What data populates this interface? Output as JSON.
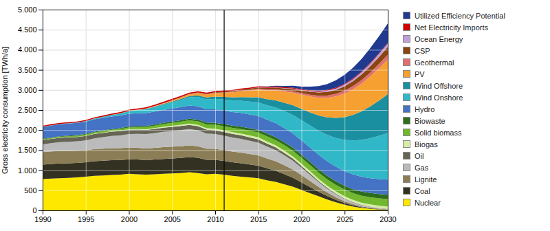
{
  "chart_data": {
    "type": "area",
    "stacked": true,
    "ylabel": "Gross electricity consumption [TWh/a]",
    "x": [
      1990,
      1991,
      1992,
      1993,
      1994,
      1995,
      1996,
      1997,
      1998,
      1999,
      2000,
      2001,
      2002,
      2003,
      2004,
      2005,
      2006,
      2007,
      2008,
      2009,
      2010,
      2011,
      2012,
      2013,
      2014,
      2015,
      2016,
      2017,
      2018,
      2019,
      2020,
      2021,
      2022,
      2023,
      2024,
      2025,
      2026,
      2027,
      2028,
      2029,
      2030
    ],
    "xlim": [
      1990,
      2030
    ],
    "xticks": [
      1990,
      1995,
      2000,
      2005,
      2010,
      2015,
      2020,
      2025,
      2030
    ],
    "ylim": [
      0,
      5000
    ],
    "yticks": [
      0,
      500,
      {
        "value": 1000,
        "label": "1.000"
      },
      {
        "value": 1500,
        "label": "1.500"
      },
      {
        "value": 2000,
        "label": "2.000"
      },
      {
        "value": 2500,
        "label": "2.500"
      },
      {
        "value": 3000,
        "label": "3.000"
      },
      {
        "value": 3500,
        "label": "3.500"
      },
      {
        "value": 4000,
        "label": "4.000"
      },
      {
        "value": 4500,
        "label": "4.500"
      },
      {
        "value": 5000,
        "label": "5.000"
      }
    ],
    "grid": true,
    "legend": "right",
    "vline": 2011,
    "series": [
      {
        "name": "Nuclear",
        "color": "#FFE800",
        "values": [
          780,
          790,
          800,
          810,
          820,
          840,
          860,
          870,
          880,
          890,
          910,
          900,
          890,
          900,
          910,
          920,
          930,
          950,
          930,
          900,
          910,
          890,
          860,
          840,
          820,
          800,
          750,
          710,
          650,
          590,
          510,
          430,
          350,
          270,
          200,
          140,
          95,
          60,
          38,
          22,
          12
        ]
      },
      {
        "name": "Coal",
        "color": "#333222",
        "values": [
          360,
          365,
          368,
          365,
          362,
          358,
          365,
          368,
          372,
          365,
          362,
          365,
          362,
          365,
          368,
          372,
          375,
          378,
          380,
          358,
          350,
          342,
          338,
          335,
          325,
          315,
          298,
          278,
          252,
          224,
          188,
          150,
          114,
          86,
          62,
          44,
          29,
          19,
          14,
          10,
          8
        ]
      },
      {
        "name": "Lignite",
        "color": "#8B7D55",
        "values": [
          310,
          314,
          310,
          306,
          302,
          298,
          302,
          300,
          298,
          295,
          294,
          292,
          290,
          294,
          298,
          295,
          292,
          290,
          286,
          278,
          272,
          270,
          266,
          263,
          258,
          253,
          244,
          235,
          222,
          204,
          180,
          152,
          118,
          88,
          64,
          44,
          29,
          19,
          14,
          9,
          7
        ]
      },
      {
        "name": "Gas",
        "color": "#BBBBBB",
        "values": [
          195,
          205,
          220,
          228,
          235,
          248,
          268,
          285,
          302,
          318,
          335,
          348,
          358,
          368,
          380,
          390,
          402,
          408,
          400,
          378,
          368,
          360,
          352,
          344,
          332,
          320,
          300,
          278,
          250,
          220,
          185,
          152,
          118,
          93,
          72,
          54,
          41,
          30,
          22,
          16,
          11
        ]
      },
      {
        "name": "Oil",
        "color": "#666555",
        "values": [
          105,
          108,
          110,
          110,
          109,
          110,
          110,
          109,
          108,
          107,
          106,
          105,
          104,
          104,
          104,
          104,
          103,
          102,
          101,
          97,
          95,
          92,
          90,
          87,
          84,
          80,
          75,
          69,
          62,
          54,
          45,
          37,
          29,
          22,
          17,
          13,
          10,
          7,
          5,
          4,
          3
        ]
      },
      {
        "name": "Biogas",
        "color": "#D8ECA8",
        "values": [
          3,
          3,
          4,
          4,
          5,
          6,
          7,
          8,
          10,
          12,
          14,
          16,
          18,
          21,
          24,
          27,
          30,
          33,
          35,
          37,
          39,
          41,
          43,
          46,
          48,
          50,
          51,
          52,
          53,
          54,
          55,
          55,
          55,
          55,
          55,
          55,
          55,
          55,
          55,
          55,
          55
        ]
      },
      {
        "name": "Solid biomass",
        "color": "#72B82E",
        "values": [
          18,
          19,
          21,
          23,
          25,
          27,
          30,
          33,
          36,
          40,
          44,
          48,
          53,
          58,
          63,
          69,
          75,
          81,
          86,
          91,
          96,
          101,
          106,
          111,
          116,
          121,
          126,
          131,
          136,
          140,
          145,
          149,
          154,
          158,
          163,
          167,
          171,
          175,
          179,
          183,
          186
        ]
      },
      {
        "name": "Biowaste",
        "color": "#2D6E1B",
        "values": [
          12,
          13,
          14,
          15,
          16,
          17,
          18,
          19,
          20,
          22,
          24,
          26,
          28,
          30,
          32,
          35,
          38,
          41,
          44,
          47,
          50,
          53,
          56,
          59,
          62,
          65,
          68,
          71,
          74,
          77,
          80,
          83,
          86,
          89,
          92,
          95,
          98,
          101,
          104,
          107,
          109
        ]
      },
      {
        "name": "Hydro",
        "color": "#4472C4",
        "values": [
          295,
          297,
          299,
          301,
          303,
          305,
          307,
          309,
          311,
          313,
          315,
          317,
          319,
          321,
          323,
          325,
          327,
          329,
          331,
          333,
          335,
          337,
          339,
          341,
          343,
          345,
          347,
          349,
          351,
          353,
          355,
          357,
          359,
          361,
          363,
          365,
          367,
          369,
          371,
          373,
          375
        ]
      },
      {
        "name": "Wind Onshore",
        "color": "#31B8C8",
        "values": [
          4,
          5,
          6,
          8,
          11,
          15,
          20,
          28,
          38,
          50,
          64,
          78,
          94,
          112,
          132,
          154,
          178,
          204,
          232,
          248,
          262,
          276,
          290,
          305,
          322,
          340,
          363,
          392,
          425,
          462,
          504,
          550,
          601,
          656,
          715,
          779,
          848,
          921,
          998,
          1078,
          1160
        ]
      },
      {
        "name": "Wind Offshore",
        "color": "#1A8FA0",
        "values": [
          0,
          0,
          0,
          0,
          0,
          1,
          1,
          2,
          2,
          3,
          5,
          7,
          9,
          12,
          15,
          20,
          25,
          31,
          38,
          46,
          55,
          65,
          77,
          91,
          107,
          126,
          148,
          174,
          205,
          240,
          280,
          325,
          378,
          436,
          498,
          565,
          638,
          714,
          795,
          880,
          968
        ]
      },
      {
        "name": "PV",
        "color": "#F5A030",
        "values": [
          0,
          0,
          0,
          0,
          0,
          0,
          1,
          1,
          2,
          3,
          4,
          6,
          9,
          13,
          18,
          25,
          34,
          44,
          57,
          71,
          86,
          104,
          123,
          144,
          168,
          193,
          219,
          248,
          280,
          316,
          354,
          397,
          442,
          488,
          536,
          586,
          638,
          692,
          748,
          806,
          866
        ]
      },
      {
        "name": "Geothermal",
        "color": "#E07070",
        "values": [
          1,
          1,
          1,
          1,
          1,
          2,
          2,
          2,
          2,
          2,
          3,
          3,
          3,
          4,
          4,
          5,
          5,
          6,
          7,
          8,
          9,
          11,
          13,
          15,
          17,
          20,
          23,
          26,
          30,
          34,
          39,
          44,
          50,
          57,
          64,
          71,
          79,
          87,
          96,
          107,
          117
        ]
      },
      {
        "name": "CSP",
        "color": "#8B4510",
        "values": [
          0,
          0,
          0,
          0,
          0,
          0,
          0,
          0,
          0,
          0,
          0,
          1,
          1,
          2,
          2,
          4,
          5,
          6,
          8,
          10,
          13,
          16,
          19,
          23,
          27,
          31,
          36,
          42,
          48,
          55,
          63,
          72,
          81,
          91,
          102,
          114,
          127,
          141,
          157,
          174,
          192
        ]
      },
      {
        "name": "Ocean Energy",
        "color": "#C09FD8",
        "values": [
          0,
          0,
          0,
          0,
          0,
          0,
          0,
          0,
          0,
          0,
          0,
          0,
          0,
          0,
          0,
          0,
          0,
          0,
          1,
          1,
          1,
          2,
          2,
          3,
          3,
          5,
          6,
          7,
          9,
          12,
          15,
          18,
          23,
          28,
          33,
          40,
          47,
          56,
          65,
          76,
          88
        ]
      },
      {
        "name": "Net Electricity Imports",
        "color": "#CC0000",
        "values": [
          25,
          27,
          28,
          27,
          26,
          25,
          27,
          28,
          29,
          30,
          29,
          28,
          29,
          30,
          31,
          32,
          32,
          31,
          30,
          29,
          28,
          27,
          27,
          26,
          26,
          25,
          24,
          24,
          24,
          23,
          22,
          22,
          21,
          21,
          20,
          20,
          19,
          19,
          19,
          18,
          18
        ]
      },
      {
        "name": "Utilized Efficiency Potential",
        "color": "#1F3A8F",
        "values": [
          0,
          0,
          0,
          0,
          0,
          0,
          0,
          0,
          0,
          0,
          0,
          0,
          0,
          0,
          0,
          0,
          0,
          0,
          0,
          0,
          0,
          0,
          0,
          0,
          0,
          0,
          8,
          16,
          28,
          44,
          64,
          88,
          116,
          148,
          184,
          224,
          268,
          316,
          368,
          424,
          480
        ]
      }
    ]
  }
}
